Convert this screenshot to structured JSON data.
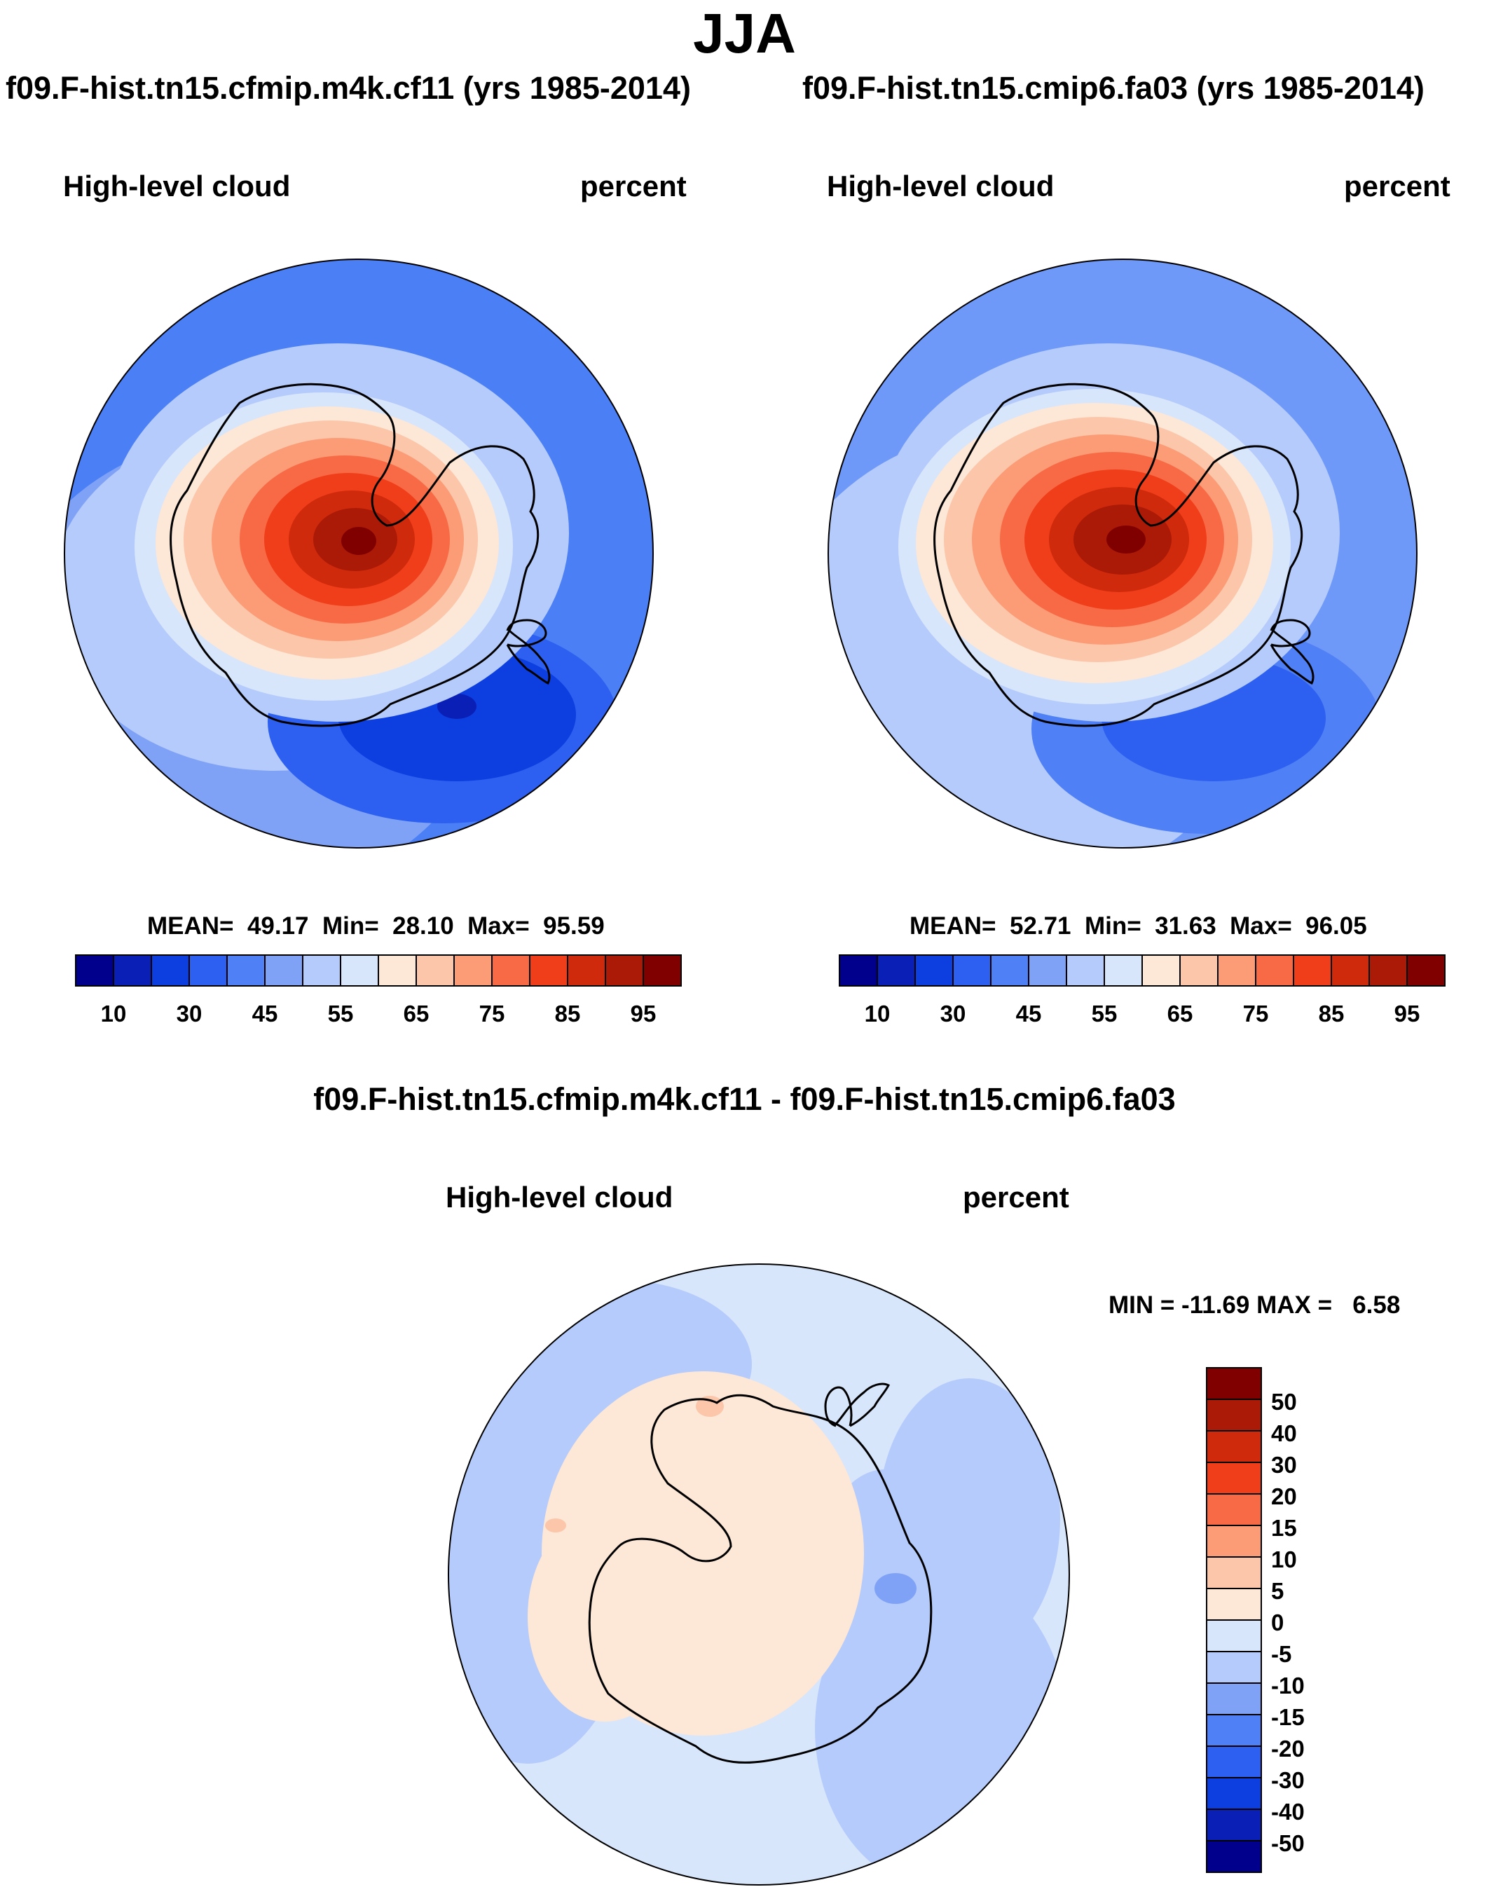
{
  "page": {
    "title": "JJA",
    "colors": {
      "coast": "#000000",
      "frame": "#000000"
    }
  },
  "panels": [
    {
      "case": "f09.F-hist.tn15.cfmip.m4k.cf11 (yrs 1985-2014)",
      "variable": "High-level cloud",
      "units": "percent",
      "stats": "MEAN=  49.17  Min=  28.10  Max=  95.59",
      "mean": 49.17,
      "min": 28.1,
      "max": 95.59,
      "background_color": "#4a7ff5"
    },
    {
      "case": "f09.F-hist.tn15.cmip6.fa03 (yrs 1985-2014)",
      "variable": "High-level cloud",
      "units": "percent",
      "stats": "MEAN=  52.71  Min=  31.63  Max=  96.05",
      "mean": 52.71,
      "min": 31.63,
      "max": 96.05,
      "background_color": "#6f99f8"
    }
  ],
  "colorbar": {
    "orientation": "horizontal",
    "labels": [
      "10",
      "30",
      "45",
      "55",
      "65",
      "75",
      "85",
      "95"
    ],
    "colors": [
      "#00008c",
      "#0a1fb5",
      "#0d3fe0",
      "#2d60f0",
      "#4f80f5",
      "#7fa2f7",
      "#b5cbfb",
      "#d8e6fc",
      "#fde7d6",
      "#fcc6aa",
      "#fb9c76",
      "#f86a45",
      "#ef3e19",
      "#cf2a0c",
      "#ab1a07",
      "#800000"
    ]
  },
  "difference": {
    "title": "f09.F-hist.tn15.cfmip.m4k.cf11 - f09.F-hist.tn15.cmip6.fa03",
    "variable": "High-level cloud",
    "units": "percent",
    "stats": "MIN = -11.69 MAX =   6.58",
    "min": -11.69,
    "max": 6.58,
    "background_color": "#d8e6fc",
    "colorbar": {
      "orientation": "vertical",
      "labels": [
        "50",
        "40",
        "30",
        "20",
        "15",
        "10",
        "5",
        "0",
        "-5",
        "-10",
        "-15",
        "-20",
        "-30",
        "-40",
        "-50"
      ],
      "colors": [
        "#800000",
        "#ab1a07",
        "#cf2a0c",
        "#ef3e19",
        "#f86a45",
        "#fb9c76",
        "#fcc6aa",
        "#fde7d6",
        "#d8e6fc",
        "#b5cbfb",
        "#7fa2f7",
        "#4f80f5",
        "#2d60f0",
        "#0d3fe0",
        "#0a1fb5",
        "#00008c"
      ]
    }
  }
}
